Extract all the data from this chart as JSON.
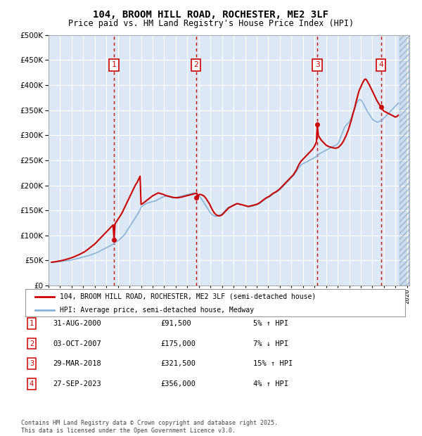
{
  "title": "104, BROOM HILL ROAD, ROCHESTER, ME2 3LF",
  "subtitle": "Price paid vs. HM Land Registry's House Price Index (HPI)",
  "ylim": [
    0,
    500000
  ],
  "yticks": [
    0,
    50000,
    100000,
    150000,
    200000,
    250000,
    300000,
    350000,
    400000,
    450000,
    500000
  ],
  "xlim_start": 1995.3,
  "xlim_end": 2026.2,
  "fig_bg": "#ffffff",
  "plot_bg": "#dce8f5",
  "grid_color": "#ffffff",
  "red_color": "#cc0000",
  "blue_color": "#88b4d8",
  "purchase_points": [
    {
      "year": 2000.667,
      "price": 91500,
      "label": "1"
    },
    {
      "year": 2007.75,
      "price": 175000,
      "label": "2"
    },
    {
      "year": 2018.24,
      "price": 321500,
      "label": "3"
    },
    {
      "year": 2023.74,
      "price": 356000,
      "label": "4"
    }
  ],
  "vline_years": [
    2000.667,
    2007.75,
    2018.24,
    2023.74
  ],
  "legend_entries": [
    "104, BROOM HILL ROAD, ROCHESTER, ME2 3LF (semi-detached house)",
    "HPI: Average price, semi-detached house, Medway"
  ],
  "table_rows": [
    {
      "num": "1",
      "date": "31-AUG-2000",
      "price": "£91,500",
      "pct": "5% ↑ HPI"
    },
    {
      "num": "2",
      "date": "03-OCT-2007",
      "price": "£175,000",
      "pct": "7% ↓ HPI"
    },
    {
      "num": "3",
      "date": "29-MAR-2018",
      "price": "£321,500",
      "pct": "15% ↑ HPI"
    },
    {
      "num": "4",
      "date": "27-SEP-2023",
      "price": "£356,000",
      "pct": "4% ↑ HPI"
    }
  ],
  "footnote": "Contains HM Land Registry data © Crown copyright and database right 2025.\nThis data is licensed under the Open Government Licence v3.0.",
  "hpi_years": [
    1995.25,
    1995.33,
    1995.42,
    1995.5,
    1995.58,
    1995.67,
    1995.75,
    1995.83,
    1995.92,
    1996.0,
    1996.08,
    1996.17,
    1996.25,
    1996.33,
    1996.42,
    1996.5,
    1996.58,
    1996.67,
    1996.75,
    1996.83,
    1996.92,
    1997.0,
    1997.08,
    1997.17,
    1997.25,
    1997.33,
    1997.42,
    1997.5,
    1997.58,
    1997.67,
    1997.75,
    1997.83,
    1997.92,
    1998.0,
    1998.08,
    1998.17,
    1998.25,
    1998.33,
    1998.42,
    1998.5,
    1998.58,
    1998.67,
    1998.75,
    1998.83,
    1998.92,
    1999.0,
    1999.08,
    1999.17,
    1999.25,
    1999.33,
    1999.42,
    1999.5,
    1999.58,
    1999.67,
    1999.75,
    1999.83,
    1999.92,
    2000.0,
    2000.08,
    2000.17,
    2000.25,
    2000.33,
    2000.42,
    2000.5,
    2000.58,
    2000.67,
    2000.75,
    2000.83,
    2000.92,
    2001.0,
    2001.08,
    2001.17,
    2001.25,
    2001.33,
    2001.42,
    2001.5,
    2001.58,
    2001.67,
    2001.75,
    2001.83,
    2001.92,
    2002.0,
    2002.08,
    2002.17,
    2002.25,
    2002.33,
    2002.42,
    2002.5,
    2002.58,
    2002.67,
    2002.75,
    2002.83,
    2002.92,
    2003.0,
    2003.08,
    2003.17,
    2003.25,
    2003.33,
    2003.42,
    2003.5,
    2003.58,
    2003.67,
    2003.75,
    2003.83,
    2003.92,
    2004.0,
    2004.08,
    2004.17,
    2004.25,
    2004.33,
    2004.42,
    2004.5,
    2004.58,
    2004.67,
    2004.75,
    2004.83,
    2004.92,
    2005.0,
    2005.08,
    2005.17,
    2005.25,
    2005.33,
    2005.42,
    2005.5,
    2005.58,
    2005.67,
    2005.75,
    2005.83,
    2005.92,
    2006.0,
    2006.08,
    2006.17,
    2006.25,
    2006.33,
    2006.42,
    2006.5,
    2006.58,
    2006.67,
    2006.75,
    2006.83,
    2006.92,
    2007.0,
    2007.08,
    2007.17,
    2007.25,
    2007.33,
    2007.42,
    2007.5,
    2007.58,
    2007.67,
    2007.75,
    2007.83,
    2007.92,
    2008.0,
    2008.08,
    2008.17,
    2008.25,
    2008.33,
    2008.42,
    2008.5,
    2008.58,
    2008.67,
    2008.75,
    2008.83,
    2008.92,
    2009.0,
    2009.08,
    2009.17,
    2009.25,
    2009.33,
    2009.42,
    2009.5,
    2009.58,
    2009.67,
    2009.75,
    2009.83,
    2009.92,
    2010.0,
    2010.08,
    2010.17,
    2010.25,
    2010.33,
    2010.42,
    2010.5,
    2010.58,
    2010.67,
    2010.75,
    2010.83,
    2010.92,
    2011.0,
    2011.08,
    2011.17,
    2011.25,
    2011.33,
    2011.42,
    2011.5,
    2011.58,
    2011.67,
    2011.75,
    2011.83,
    2011.92,
    2012.0,
    2012.08,
    2012.17,
    2012.25,
    2012.33,
    2012.42,
    2012.5,
    2012.58,
    2012.67,
    2012.75,
    2012.83,
    2012.92,
    2013.0,
    2013.08,
    2013.17,
    2013.25,
    2013.33,
    2013.42,
    2013.5,
    2013.58,
    2013.67,
    2013.75,
    2013.83,
    2013.92,
    2014.0,
    2014.08,
    2014.17,
    2014.25,
    2014.33,
    2014.42,
    2014.5,
    2014.58,
    2014.67,
    2014.75,
    2014.83,
    2014.92,
    2015.0,
    2015.08,
    2015.17,
    2015.25,
    2015.33,
    2015.42,
    2015.5,
    2015.58,
    2015.67,
    2015.75,
    2015.83,
    2015.92,
    2016.0,
    2016.08,
    2016.17,
    2016.25,
    2016.33,
    2016.42,
    2016.5,
    2016.58,
    2016.67,
    2016.75,
    2016.83,
    2016.92,
    2017.0,
    2017.08,
    2017.17,
    2017.25,
    2017.33,
    2017.42,
    2017.5,
    2017.58,
    2017.67,
    2017.75,
    2017.83,
    2017.92,
    2018.0,
    2018.08,
    2018.17,
    2018.25,
    2018.33,
    2018.42,
    2018.5,
    2018.58,
    2018.67,
    2018.75,
    2018.83,
    2018.92,
    2019.0,
    2019.08,
    2019.17,
    2019.25,
    2019.33,
    2019.42,
    2019.5,
    2019.58,
    2019.67,
    2019.75,
    2019.83,
    2019.92,
    2020.0,
    2020.08,
    2020.17,
    2020.25,
    2020.33,
    2020.42,
    2020.5,
    2020.58,
    2020.67,
    2020.75,
    2020.83,
    2020.92,
    2021.0,
    2021.08,
    2021.17,
    2021.25,
    2021.33,
    2021.42,
    2021.5,
    2021.58,
    2021.67,
    2021.75,
    2021.83,
    2021.92,
    2022.0,
    2022.08,
    2022.17,
    2022.25,
    2022.33,
    2022.42,
    2022.5,
    2022.58,
    2022.67,
    2022.75,
    2022.83,
    2022.92,
    2023.0,
    2023.08,
    2023.17,
    2023.25,
    2023.33,
    2023.42,
    2023.5,
    2023.58,
    2023.67,
    2023.75,
    2023.83,
    2023.92,
    2024.0,
    2024.08,
    2024.17,
    2024.25,
    2024.33,
    2024.42,
    2024.5,
    2024.58,
    2024.67,
    2024.75,
    2024.83,
    2024.92,
    2025.0,
    2025.08,
    2025.17,
    2025.25
  ],
  "hpi_values": [
    46000,
    46200,
    46500,
    46800,
    47000,
    47200,
    47400,
    47600,
    47800,
    48000,
    48200,
    48500,
    48800,
    49000,
    49200,
    49500,
    49700,
    50000,
    50200,
    50500,
    50800,
    51000,
    51500,
    52000,
    52500,
    53000,
    53500,
    54000,
    54500,
    55000,
    55500,
    56000,
    56500,
    57000,
    57500,
    58000,
    58500,
    59000,
    59500,
    60000,
    60500,
    61000,
    62000,
    63000,
    63500,
    64000,
    64800,
    65500,
    66500,
    67500,
    68500,
    69500,
    70500,
    71500,
    72500,
    73500,
    74500,
    75500,
    76500,
    77500,
    78500,
    79500,
    80500,
    81500,
    83000,
    84500,
    86000,
    87500,
    88500,
    89500,
    91000,
    92500,
    94000,
    96000,
    98000,
    100000,
    102000,
    105000,
    108000,
    111000,
    114000,
    117000,
    120000,
    123000,
    126000,
    129000,
    132000,
    135000,
    138000,
    141000,
    144000,
    148000,
    152000,
    156000,
    158000,
    160000,
    161000,
    162000,
    163000,
    164000,
    165000,
    165500,
    166000,
    166500,
    167000,
    167500,
    168000,
    168500,
    169000,
    170000,
    171000,
    172000,
    173000,
    174000,
    175000,
    176000,
    177000,
    177500,
    178000,
    178500,
    178000,
    177500,
    177000,
    176500,
    176000,
    175500,
    175000,
    175200,
    175500,
    175800,
    176200,
    176500,
    177000,
    177500,
    178000,
    178500,
    179000,
    179500,
    180000,
    180500,
    181000,
    181500,
    182000,
    182500,
    183000,
    183500,
    184000,
    184500,
    185000,
    184000,
    183000,
    182000,
    181000,
    179000,
    177000,
    175000,
    172000,
    169000,
    166000,
    163000,
    160000,
    157000,
    154000,
    151000,
    148000,
    145000,
    143000,
    141000,
    140000,
    139000,
    138500,
    138000,
    138500,
    139000,
    140000,
    141000,
    142000,
    143000,
    145000,
    147000,
    149000,
    151000,
    153000,
    155000,
    156000,
    157000,
    158000,
    159000,
    160000,
    161000,
    162000,
    162500,
    163000,
    163500,
    163000,
    162500,
    162000,
    161500,
    161000,
    160500,
    160000,
    159000,
    158000,
    157500,
    157000,
    157000,
    157500,
    158000,
    158500,
    159000,
    159500,
    160000,
    160500,
    161000,
    162000,
    163000,
    164000,
    165000,
    166500,
    168000,
    169500,
    171000,
    172500,
    174000,
    175000,
    176000,
    177000,
    178000,
    179500,
    181000,
    182500,
    184000,
    185000,
    186000,
    187000,
    188000,
    189500,
    191000,
    193000,
    195000,
    197000,
    199000,
    201000,
    203000,
    205000,
    207000,
    209000,
    211000,
    213000,
    215000,
    217000,
    219000,
    221000,
    224000,
    227000,
    230000,
    233000,
    236000,
    238000,
    240000,
    242000,
    243000,
    244000,
    245000,
    246000,
    247000,
    248000,
    249000,
    250000,
    251000,
    252000,
    253000,
    254000,
    255000,
    256500,
    258000,
    259500,
    261000,
    262500,
    264000,
    265000,
    266000,
    267000,
    268000,
    269000,
    270000,
    271000,
    272000,
    273000,
    274000,
    275000,
    276000,
    277000,
    278000,
    279000,
    280000,
    281000,
    282000,
    285000,
    290000,
    295000,
    300000,
    305000,
    310000,
    315000,
    318000,
    320000,
    322000,
    324000,
    326000,
    330000,
    335000,
    340000,
    345000,
    350000,
    355000,
    360000,
    365000,
    368000,
    370000,
    371000,
    370000,
    368000,
    365000,
    362000,
    358000,
    354000,
    350000,
    347000,
    344000,
    341000,
    338000,
    335000,
    332000,
    330000,
    329000,
    328000,
    327000,
    326000,
    326000,
    327000,
    328000,
    329000,
    330000,
    332000,
    334000,
    336000,
    338000,
    340000,
    342000,
    344000,
    346000,
    348000,
    350000,
    352000,
    354000,
    356000,
    358000,
    360000,
    362000,
    364000
  ],
  "price_years": [
    1995.25,
    1995.33,
    1995.42,
    1995.5,
    1995.58,
    1995.67,
    1995.75,
    1995.83,
    1995.92,
    1996.0,
    1996.08,
    1996.17,
    1996.25,
    1996.33,
    1996.42,
    1996.5,
    1996.58,
    1996.67,
    1996.75,
    1996.83,
    1996.92,
    1997.0,
    1997.08,
    1997.17,
    1997.25,
    1997.33,
    1997.42,
    1997.5,
    1997.58,
    1997.67,
    1997.75,
    1997.83,
    1997.92,
    1998.0,
    1998.08,
    1998.17,
    1998.25,
    1998.33,
    1998.42,
    1998.5,
    1998.58,
    1998.67,
    1998.75,
    1998.83,
    1998.92,
    1999.0,
    1999.08,
    1999.17,
    1999.25,
    1999.33,
    1999.42,
    1999.5,
    1999.58,
    1999.67,
    1999.75,
    1999.83,
    1999.92,
    2000.0,
    2000.08,
    2000.17,
    2000.25,
    2000.33,
    2000.42,
    2000.5,
    2000.58,
    2000.667,
    2000.75,
    2000.83,
    2000.92,
    2001.0,
    2001.08,
    2001.17,
    2001.25,
    2001.33,
    2001.42,
    2001.5,
    2001.58,
    2001.67,
    2001.75,
    2001.83,
    2001.92,
    2002.0,
    2002.08,
    2002.17,
    2002.25,
    2002.33,
    2002.42,
    2002.5,
    2002.58,
    2002.67,
    2002.75,
    2002.83,
    2002.92,
    2003.0,
    2003.08,
    2003.17,
    2003.25,
    2003.33,
    2003.42,
    2003.5,
    2003.58,
    2003.67,
    2003.75,
    2003.83,
    2003.92,
    2004.0,
    2004.08,
    2004.17,
    2004.25,
    2004.33,
    2004.42,
    2004.5,
    2004.58,
    2004.67,
    2004.75,
    2004.83,
    2004.92,
    2005.0,
    2005.08,
    2005.17,
    2005.25,
    2005.33,
    2005.42,
    2005.5,
    2005.58,
    2005.67,
    2005.75,
    2005.83,
    2005.92,
    2006.0,
    2006.08,
    2006.17,
    2006.25,
    2006.33,
    2006.42,
    2006.5,
    2006.58,
    2006.67,
    2006.75,
    2006.83,
    2006.92,
    2007.0,
    2007.08,
    2007.17,
    2007.25,
    2007.33,
    2007.42,
    2007.5,
    2007.58,
    2007.67,
    2007.75,
    2007.83,
    2007.92,
    2008.0,
    2008.08,
    2008.17,
    2008.25,
    2008.33,
    2008.42,
    2008.5,
    2008.58,
    2008.67,
    2008.75,
    2008.83,
    2008.92,
    2009.0,
    2009.08,
    2009.17,
    2009.25,
    2009.33,
    2009.42,
    2009.5,
    2009.58,
    2009.67,
    2009.75,
    2009.83,
    2009.92,
    2010.0,
    2010.08,
    2010.17,
    2010.25,
    2010.33,
    2010.42,
    2010.5,
    2010.58,
    2010.67,
    2010.75,
    2010.83,
    2010.92,
    2011.0,
    2011.08,
    2011.17,
    2011.25,
    2011.33,
    2011.42,
    2011.5,
    2011.58,
    2011.67,
    2011.75,
    2011.83,
    2011.92,
    2012.0,
    2012.08,
    2012.17,
    2012.25,
    2012.33,
    2012.42,
    2012.5,
    2012.58,
    2012.67,
    2012.75,
    2012.83,
    2012.92,
    2013.0,
    2013.08,
    2013.17,
    2013.25,
    2013.33,
    2013.42,
    2013.5,
    2013.58,
    2013.67,
    2013.75,
    2013.83,
    2013.92,
    2014.0,
    2014.08,
    2014.17,
    2014.25,
    2014.33,
    2014.42,
    2014.5,
    2014.58,
    2014.67,
    2014.75,
    2014.83,
    2014.92,
    2015.0,
    2015.08,
    2015.17,
    2015.25,
    2015.33,
    2015.42,
    2015.5,
    2015.58,
    2015.67,
    2015.75,
    2015.83,
    2015.92,
    2016.0,
    2016.08,
    2016.17,
    2016.25,
    2016.33,
    2016.42,
    2016.5,
    2016.58,
    2016.67,
    2016.75,
    2016.83,
    2016.92,
    2017.0,
    2017.08,
    2017.17,
    2017.25,
    2017.33,
    2017.42,
    2017.5,
    2017.58,
    2017.67,
    2017.75,
    2017.83,
    2017.92,
    2018.0,
    2018.08,
    2018.17,
    2018.24,
    2018.33,
    2018.42,
    2018.5,
    2018.58,
    2018.67,
    2018.75,
    2018.83,
    2018.92,
    2019.0,
    2019.08,
    2019.17,
    2019.25,
    2019.33,
    2019.42,
    2019.5,
    2019.58,
    2019.67,
    2019.75,
    2019.83,
    2019.92,
    2020.0,
    2020.08,
    2020.17,
    2020.25,
    2020.33,
    2020.42,
    2020.5,
    2020.58,
    2020.67,
    2020.75,
    2020.83,
    2020.92,
    2021.0,
    2021.08,
    2021.17,
    2021.25,
    2021.33,
    2021.42,
    2021.5,
    2021.58,
    2021.67,
    2021.75,
    2021.83,
    2021.92,
    2022.0,
    2022.08,
    2022.17,
    2022.25,
    2022.33,
    2022.42,
    2022.5,
    2022.58,
    2022.67,
    2022.75,
    2022.83,
    2022.92,
    2023.0,
    2023.08,
    2023.17,
    2023.25,
    2023.33,
    2023.42,
    2023.5,
    2023.58,
    2023.67,
    2023.74,
    2023.83,
    2023.92,
    2024.0,
    2024.08,
    2024.17,
    2024.25,
    2024.33,
    2024.42,
    2024.5,
    2024.58,
    2024.67,
    2024.75,
    2024.83,
    2024.92,
    2025.0,
    2025.08,
    2025.17,
    2025.25
  ],
  "price_values": [
    46500,
    46700,
    47000,
    47300,
    47600,
    47900,
    48200,
    48500,
    48800,
    49200,
    49600,
    50000,
    50500,
    51000,
    51500,
    52000,
    52600,
    53200,
    53800,
    54500,
    55000,
    55500,
    56200,
    57000,
    57800,
    58600,
    59400,
    60300,
    61200,
    62100,
    63000,
    64000,
    65000,
    66000,
    67000,
    68200,
    69500,
    71000,
    72500,
    74000,
    75500,
    77000,
    78500,
    80000,
    81500,
    83000,
    85000,
    87000,
    89000,
    91000,
    93000,
    95000,
    97000,
    99000,
    101000,
    103000,
    105000,
    107000,
    109000,
    111000,
    113000,
    115000,
    117000,
    119000,
    121000,
    91500,
    123000,
    126000,
    129000,
    132000,
    135000,
    138000,
    141000,
    144000,
    148000,
    152000,
    156000,
    160000,
    164000,
    168000,
    172000,
    176000,
    180000,
    184000,
    188000,
    192000,
    196000,
    200000,
    203000,
    206000,
    210000,
    214000,
    218000,
    162000,
    163000,
    164000,
    165500,
    167000,
    168500,
    170000,
    171500,
    173000,
    174500,
    176000,
    177500,
    179000,
    180000,
    181000,
    182000,
    183000,
    184000,
    185000,
    184000,
    183500,
    183000,
    182500,
    182000,
    181000,
    180000,
    179500,
    179000,
    178500,
    178000,
    177500,
    177000,
    176500,
    176000,
    175800,
    175500,
    175200,
    175000,
    175200,
    175500,
    175800,
    176200,
    176500,
    177000,
    177500,
    178000,
    178500,
    179000,
    179500,
    180000,
    180500,
    181000,
    181500,
    182000,
    182500,
    183000,
    183500,
    184000,
    184200,
    175000,
    181000,
    182000,
    181500,
    181000,
    180000,
    179000,
    177000,
    175000,
    172000,
    169000,
    166000,
    163000,
    159000,
    155000,
    151000,
    148000,
    145000,
    143000,
    141000,
    140000,
    139500,
    139000,
    139500,
    140000,
    141000,
    143000,
    145000,
    147000,
    149000,
    151000,
    153000,
    155000,
    156000,
    157000,
    158000,
    159000,
    160000,
    161000,
    162000,
    163000,
    163500,
    163000,
    162500,
    162000,
    161500,
    161000,
    160500,
    160000,
    159500,
    159000,
    158500,
    158000,
    158000,
    158500,
    159000,
    159500,
    160000,
    160500,
    161000,
    161500,
    162000,
    163000,
    164000,
    165000,
    166500,
    168000,
    169500,
    171000,
    172500,
    174000,
    175000,
    176000,
    177000,
    178000,
    179500,
    181000,
    182500,
    184000,
    185000,
    186000,
    187000,
    188500,
    190000,
    191500,
    193000,
    195000,
    197000,
    199000,
    201000,
    203000,
    205000,
    207000,
    209000,
    211000,
    213000,
    215000,
    217000,
    219000,
    221000,
    224000,
    227000,
    230000,
    234000,
    238000,
    242000,
    245000,
    248000,
    250000,
    252000,
    254000,
    256000,
    258000,
    260000,
    262000,
    264000,
    266000,
    268000,
    270000,
    272000,
    275000,
    278000,
    282000,
    287000,
    321500,
    299000,
    296000,
    293000,
    290000,
    288000,
    286000,
    284000,
    282000,
    280000,
    279000,
    278000,
    277000,
    276500,
    276000,
    275500,
    275000,
    274500,
    274000,
    274000,
    274500,
    275000,
    276000,
    278000,
    280000,
    282000,
    285000,
    288000,
    292000,
    296000,
    300000,
    305000,
    310000,
    316000,
    322000,
    329000,
    336000,
    343000,
    350000,
    357000,
    365000,
    373000,
    380000,
    387000,
    392000,
    396000,
    400000,
    405000,
    408000,
    411000,
    412000,
    410000,
    407000,
    403000,
    400000,
    396000,
    392000,
    388000,
    384000,
    380000,
    376000,
    372000,
    368000,
    365000,
    362000,
    359000,
    356000,
    353000,
    350000,
    348000,
    347000,
    346000,
    345000,
    344000,
    343000,
    342000,
    341000,
    340000,
    339000,
    338000,
    337000,
    336000,
    337000,
    338000,
    340000
  ]
}
